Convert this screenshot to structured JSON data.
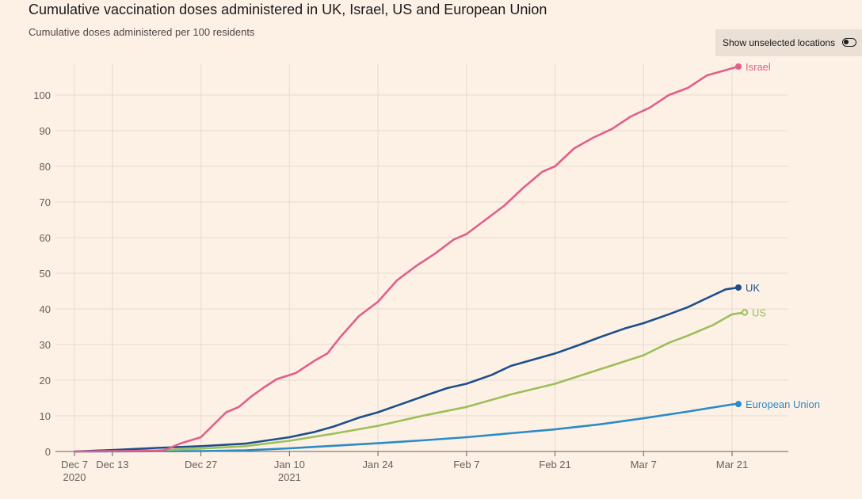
{
  "header": {
    "title": "Cumulative vaccination doses administered in UK, Israel, US and European Union",
    "subtitle": "Cumulative doses administered per 100 residents"
  },
  "toggle": {
    "label": "Show unselected locations",
    "state": "off",
    "icon": "toggle-switch-icon"
  },
  "colors": {
    "background": "#fdf1e6",
    "grid": "#e6d9ce",
    "israel": "#e0608a",
    "uk": "#1d4f8c",
    "us": "#9cbf5a",
    "eu": "#2a8bc7"
  },
  "chart_data": {
    "type": "line",
    "title": "Cumulative vaccination doses administered in UK, Israel, US and European Union",
    "subtitle": "Cumulative doses administered per 100 residents",
    "xlabel": "",
    "ylabel": "",
    "x_start": "2020-12-07",
    "x_end": "2021-03-22",
    "ylim": [
      0,
      105
    ],
    "yticks": [
      0,
      10,
      20,
      30,
      40,
      50,
      60,
      70,
      80,
      90,
      100
    ],
    "xticks": [
      {
        "date": "2020-12-07",
        "label": [
          "Dec 7",
          "2020"
        ]
      },
      {
        "date": "2020-12-13",
        "label": [
          "Dec 13"
        ]
      },
      {
        "date": "2020-12-27",
        "label": [
          "Dec 27"
        ]
      },
      {
        "date": "2021-01-10",
        "label": [
          "Jan 10",
          "2021"
        ]
      },
      {
        "date": "2021-01-24",
        "label": [
          "Jan 24"
        ]
      },
      {
        "date": "2021-02-07",
        "label": [
          "Feb 7"
        ]
      },
      {
        "date": "2021-02-21",
        "label": [
          "Feb 21"
        ]
      },
      {
        "date": "2021-03-07",
        "label": [
          "Mar 7"
        ]
      },
      {
        "date": "2021-03-21",
        "label": [
          "Mar 21"
        ]
      }
    ],
    "grid": true,
    "legend": "direct-labels-at-line-ends",
    "series": [
      {
        "name": "Israel",
        "key": "israel",
        "points": [
          [
            "2020-12-07",
            0
          ],
          [
            "2020-12-21",
            0.2
          ],
          [
            "2020-12-24",
            2.4
          ],
          [
            "2020-12-27",
            4
          ],
          [
            "2020-12-31",
            11
          ],
          [
            "2021-01-02",
            12.5
          ],
          [
            "2021-01-04",
            15.5
          ],
          [
            "2021-01-06",
            18
          ],
          [
            "2021-01-08",
            20.3
          ],
          [
            "2021-01-11",
            22
          ],
          [
            "2021-01-14",
            25.5
          ],
          [
            "2021-01-16",
            27.5
          ],
          [
            "2021-01-18",
            32
          ],
          [
            "2021-01-21",
            38
          ],
          [
            "2021-01-24",
            42
          ],
          [
            "2021-01-27",
            48
          ],
          [
            "2021-01-30",
            52
          ],
          [
            "2021-02-02",
            55.5
          ],
          [
            "2021-02-05",
            59.5
          ],
          [
            "2021-02-07",
            61
          ],
          [
            "2021-02-10",
            65
          ],
          [
            "2021-02-13",
            69
          ],
          [
            "2021-02-16",
            74
          ],
          [
            "2021-02-19",
            78.5
          ],
          [
            "2021-02-21",
            80
          ],
          [
            "2021-02-24",
            85
          ],
          [
            "2021-02-27",
            88
          ],
          [
            "2021-03-02",
            90.5
          ],
          [
            "2021-03-05",
            94
          ],
          [
            "2021-03-08",
            96.5
          ],
          [
            "2021-03-11",
            100
          ],
          [
            "2021-03-14",
            102
          ],
          [
            "2021-03-17",
            105.5
          ],
          [
            "2021-03-20",
            107
          ],
          [
            "2021-03-22",
            108
          ]
        ]
      },
      {
        "name": "UK",
        "key": "uk",
        "points": [
          [
            "2020-12-07",
            0
          ],
          [
            "2020-12-13",
            0.4
          ],
          [
            "2020-12-20",
            1
          ],
          [
            "2020-12-27",
            1.5
          ],
          [
            "2021-01-03",
            2.2
          ],
          [
            "2021-01-10",
            4
          ],
          [
            "2021-01-14",
            5.5
          ],
          [
            "2021-01-17",
            7
          ],
          [
            "2021-01-21",
            9.5
          ],
          [
            "2021-01-24",
            11
          ],
          [
            "2021-01-28",
            13.5
          ],
          [
            "2021-02-01",
            16
          ],
          [
            "2021-02-04",
            17.8
          ],
          [
            "2021-02-07",
            19
          ],
          [
            "2021-02-11",
            21.5
          ],
          [
            "2021-02-14",
            24
          ],
          [
            "2021-02-18",
            26
          ],
          [
            "2021-02-21",
            27.5
          ],
          [
            "2021-02-25",
            30
          ],
          [
            "2021-02-28",
            32
          ],
          [
            "2021-03-04",
            34.5
          ],
          [
            "2021-03-07",
            36
          ],
          [
            "2021-03-11",
            38.5
          ],
          [
            "2021-03-14",
            40.5
          ],
          [
            "2021-03-17",
            43
          ],
          [
            "2021-03-20",
            45.5
          ],
          [
            "2021-03-22",
            46
          ]
        ]
      },
      {
        "name": "US",
        "key": "us",
        "points": [
          [
            "2020-12-07",
            0
          ],
          [
            "2020-12-20",
            0.3
          ],
          [
            "2020-12-27",
            0.8
          ],
          [
            "2021-01-03",
            1.5
          ],
          [
            "2021-01-10",
            3
          ],
          [
            "2021-01-17",
            5
          ],
          [
            "2021-01-24",
            7.2
          ],
          [
            "2021-01-31",
            10
          ],
          [
            "2021-02-07",
            12.5
          ],
          [
            "2021-02-14",
            16
          ],
          [
            "2021-02-21",
            19
          ],
          [
            "2021-02-28",
            23
          ],
          [
            "2021-03-07",
            27
          ],
          [
            "2021-03-11",
            30.5
          ],
          [
            "2021-03-14",
            32.5
          ],
          [
            "2021-03-18",
            35.5
          ],
          [
            "2021-03-21",
            38.5
          ],
          [
            "2021-03-23",
            39
          ]
        ]
      },
      {
        "name": "European Union",
        "key": "eu",
        "points": [
          [
            "2020-12-07",
            0
          ],
          [
            "2020-12-27",
            0.1
          ],
          [
            "2021-01-03",
            0.3
          ],
          [
            "2021-01-10",
            0.9
          ],
          [
            "2021-01-17",
            1.6
          ],
          [
            "2021-01-24",
            2.3
          ],
          [
            "2021-01-31",
            3.1
          ],
          [
            "2021-02-07",
            4
          ],
          [
            "2021-02-14",
            5.1
          ],
          [
            "2021-02-21",
            6.2
          ],
          [
            "2021-02-28",
            7.6
          ],
          [
            "2021-03-07",
            9.3
          ],
          [
            "2021-03-14",
            11.2
          ],
          [
            "2021-03-21",
            13.2
          ],
          [
            "2021-03-22",
            13.3
          ]
        ]
      }
    ]
  }
}
